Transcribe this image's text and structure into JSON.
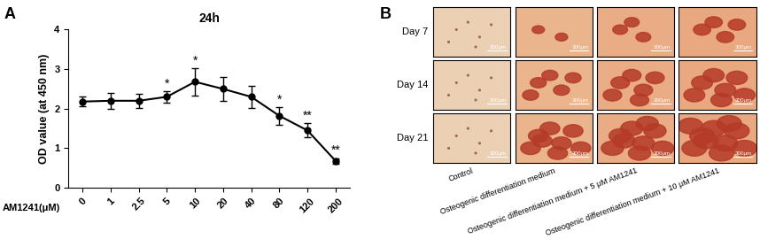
{
  "chart_data": {
    "type": "line",
    "panel_label": "A",
    "title": "24h",
    "x_label": "AM1241(μM)",
    "y_label": "OD value (at 450 nm)",
    "categories": [
      "0",
      "1",
      "2.5",
      "5",
      "10",
      "20",
      "40",
      "80",
      "120",
      "200"
    ],
    "values": [
      2.18,
      2.2,
      2.2,
      2.3,
      2.68,
      2.5,
      2.3,
      1.82,
      1.45,
      0.68
    ],
    "errors": [
      0.12,
      0.2,
      0.18,
      0.15,
      0.35,
      0.3,
      0.28,
      0.22,
      0.18,
      0.07
    ],
    "annotations": [
      null,
      null,
      null,
      "*",
      "*",
      null,
      null,
      "*",
      "**",
      "**"
    ],
    "color": "#000000",
    "marker": "o",
    "line_style": "solid",
    "ylim": [
      0,
      4
    ],
    "yticks": [
      0,
      1,
      2,
      3,
      4
    ],
    "grid": false
  },
  "image_grid": {
    "panel_label": "B",
    "rows": [
      "Day 7",
      "Day 14",
      "Day 21"
    ],
    "columns": [
      "Control",
      "Osteogenic differentiation medium",
      "Osteogenic differentiation medium + 5 μM AM1241",
      "Osteogenic differentiation medium + 10 μM AM1241"
    ],
    "scale_bar": "300μm"
  }
}
